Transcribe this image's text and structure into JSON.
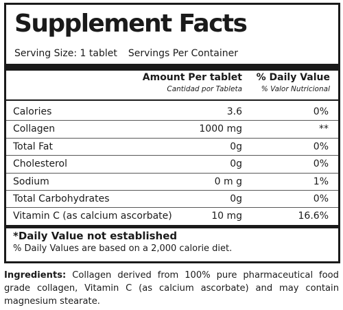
{
  "label": {
    "title": "Supplement Facts",
    "serving_size": "Serving Size: 1 tablet",
    "servings_per_container": "Servings Per Container",
    "header": {
      "amount": "Amount Per tablet",
      "amount_es": "Cantidad por Tableta",
      "daily_value": "% Daily Value",
      "daily_value_es": "% Valor Nutricional"
    },
    "nutrients": [
      {
        "name": "Calories",
        "amount": "3.6",
        "dv": "0%"
      },
      {
        "name": "Collagen",
        "amount": "1000 mg",
        "dv": "**"
      },
      {
        "name": "Total Fat",
        "amount": "0g",
        "dv": "0%"
      },
      {
        "name": "Cholesterol",
        "amount": "0g",
        "dv": "0%"
      },
      {
        "name": "Sodium",
        "amount": "0 m g",
        "dv": "1%"
      },
      {
        "name": "Total Carbohydrates",
        "amount": "0g",
        "dv": "0%"
      },
      {
        "name": "Vitamin C (as calcium ascorbate)",
        "amount": "10 mg",
        "dv": "16.6%"
      }
    ],
    "footnote_title": "*Daily Value not established",
    "footnote_text": "% Daily Values are based on a 2,000 calorie diet."
  },
  "ingredients": {
    "label": "Ingredients:",
    "text": "Collagen derived from 100% pure pharmaceutical food grade collagen, Vitamin C (as calcium ascorbate) and may contain magnesium stearate."
  }
}
